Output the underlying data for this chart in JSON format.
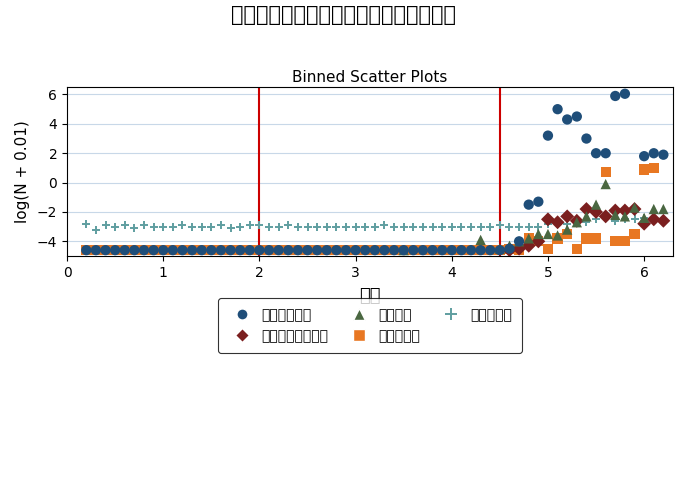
{
  "title": "東日本大震災：物理的被害と震度の関係",
  "subtitle": "Binned Scatter Plots",
  "xlabel": "震度",
  "ylabel": "log(N + 0.01)",
  "xlim": [
    0,
    6.3
  ],
  "ylim": [
    -5.0,
    6.5
  ],
  "vlines": [
    2.0,
    4.5
  ],
  "vline_color": "#cc0000",
  "background_color": "#ffffff",
  "grid_color": "#c8d8e8",
  "xticks": [
    0,
    1,
    2,
    3,
    4,
    5,
    6
  ],
  "yticks": [
    -4,
    -2,
    0,
    2,
    4,
    6
  ],
  "series": [
    {
      "name": "全半壊家屋数",
      "color": "#1f4e79",
      "marker": "o",
      "size": 55,
      "zorder": 5,
      "x": [
        0.2,
        0.3,
        0.4,
        0.5,
        0.6,
        0.7,
        0.8,
        0.9,
        1.0,
        1.1,
        1.2,
        1.3,
        1.4,
        1.5,
        1.6,
        1.7,
        1.8,
        1.9,
        2.0,
        2.1,
        2.2,
        2.3,
        2.4,
        2.5,
        2.6,
        2.7,
        2.8,
        2.9,
        3.0,
        3.1,
        3.2,
        3.3,
        3.4,
        3.5,
        3.6,
        3.7,
        3.8,
        3.9,
        4.0,
        4.1,
        4.2,
        4.3,
        4.4,
        4.5,
        4.6,
        4.7,
        4.8,
        4.9,
        5.0,
        5.1,
        5.2,
        5.3,
        5.4,
        5.5,
        5.6,
        5.7,
        5.8,
        6.0,
        6.1,
        6.2
      ],
      "y": [
        -4.6,
        -4.6,
        -4.6,
        -4.6,
        -4.6,
        -4.6,
        -4.6,
        -4.6,
        -4.6,
        -4.6,
        -4.6,
        -4.6,
        -4.6,
        -4.6,
        -4.6,
        -4.6,
        -4.6,
        -4.6,
        -4.6,
        -4.6,
        -4.6,
        -4.6,
        -4.6,
        -4.6,
        -4.6,
        -4.6,
        -4.6,
        -4.6,
        -4.6,
        -4.6,
        -4.6,
        -4.6,
        -4.6,
        -4.6,
        -4.6,
        -4.6,
        -4.6,
        -4.6,
        -4.6,
        -4.6,
        -4.6,
        -4.6,
        -4.6,
        -4.6,
        -4.5,
        -4.0,
        -1.5,
        -1.3,
        3.2,
        5.0,
        4.3,
        4.5,
        3.0,
        2.0,
        2.0,
        5.9,
        6.05,
        1.8,
        2.0,
        1.9
      ]
    },
    {
      "name": "浸水世帯数",
      "color": "#e87722",
      "marker": "s",
      "size": 55,
      "zorder": 4,
      "x": [
        0.2,
        0.3,
        0.4,
        0.5,
        0.6,
        0.7,
        0.8,
        0.9,
        1.0,
        1.1,
        1.2,
        1.3,
        1.4,
        1.5,
        1.6,
        1.7,
        1.8,
        1.9,
        2.0,
        2.1,
        2.2,
        2.3,
        2.4,
        2.5,
        2.6,
        2.7,
        2.8,
        2.9,
        3.0,
        3.1,
        3.2,
        3.3,
        3.4,
        3.5,
        3.6,
        3.7,
        3.8,
        3.9,
        4.0,
        4.1,
        4.2,
        4.3,
        4.4,
        4.5,
        4.6,
        4.7,
        4.8,
        4.9,
        5.0,
        5.1,
        5.2,
        5.3,
        5.4,
        5.5,
        5.6,
        5.7,
        5.8,
        5.9,
        6.0,
        6.1
      ],
      "y": [
        -4.6,
        -4.6,
        -4.6,
        -4.6,
        -4.6,
        -4.6,
        -4.6,
        -4.6,
        -4.6,
        -4.6,
        -4.6,
        -4.6,
        -4.6,
        -4.6,
        -4.6,
        -4.6,
        -4.6,
        -4.6,
        -4.6,
        -4.6,
        -4.6,
        -4.6,
        -4.6,
        -4.6,
        -4.6,
        -4.6,
        -4.6,
        -4.6,
        -4.6,
        -4.6,
        -4.6,
        -4.6,
        -4.6,
        -4.6,
        -4.6,
        -4.6,
        -4.6,
        -4.6,
        -4.6,
        -4.6,
        -4.6,
        -4.6,
        -4.6,
        -4.6,
        -4.5,
        -4.6,
        -3.8,
        -4.0,
        -4.5,
        -3.8,
        -3.5,
        -4.5,
        -3.8,
        -3.8,
        0.7,
        -4.0,
        -4.0,
        -3.5,
        0.9,
        1.0
      ]
    },
    {
      "name": "死者行方不明者数",
      "color": "#7b1f1f",
      "marker": "D",
      "size": 50,
      "zorder": 4,
      "x": [
        4.6,
        4.7,
        4.8,
        4.9,
        5.0,
        5.1,
        5.2,
        5.3,
        5.4,
        5.5,
        5.6,
        5.7,
        5.8,
        5.9,
        6.0,
        6.1,
        6.2
      ],
      "y": [
        -4.6,
        -4.5,
        -4.3,
        -4.0,
        -2.5,
        -2.7,
        -2.3,
        -2.6,
        -1.8,
        -2.0,
        -2.3,
        -1.9,
        -1.9,
        -1.8,
        -2.8,
        -2.5,
        -2.6
      ]
    },
    {
      "name": "負傷者数",
      "color": "#4a6741",
      "marker": "^",
      "size": 55,
      "zorder": 4,
      "x": [
        3.5,
        4.3,
        4.5,
        4.6,
        4.7,
        4.8,
        4.9,
        5.0,
        5.1,
        5.2,
        5.3,
        5.4,
        5.5,
        5.6,
        5.7,
        5.8,
        5.9,
        6.0,
        6.1,
        6.2
      ],
      "y": [
        -4.6,
        -3.9,
        -4.5,
        -4.3,
        -4.0,
        -3.8,
        -3.5,
        -3.5,
        -3.6,
        -3.2,
        -2.7,
        -2.3,
        -1.5,
        -0.1,
        -2.2,
        -2.3,
        -1.7,
        -2.4,
        -1.8,
        -1.8
      ]
    },
    {
      "name": "放射線濃度",
      "color": "#5f9ea0",
      "marker": "+",
      "size": 35,
      "zorder": 3,
      "x": [
        0.2,
        0.3,
        0.4,
        0.5,
        0.6,
        0.7,
        0.8,
        0.9,
        1.0,
        1.1,
        1.2,
        1.3,
        1.4,
        1.5,
        1.6,
        1.7,
        1.8,
        1.9,
        2.0,
        2.1,
        2.2,
        2.3,
        2.4,
        2.5,
        2.6,
        2.7,
        2.8,
        2.9,
        3.0,
        3.1,
        3.2,
        3.3,
        3.4,
        3.5,
        3.6,
        3.7,
        3.8,
        3.9,
        4.0,
        4.1,
        4.2,
        4.3,
        4.4,
        4.5,
        4.6,
        4.7,
        4.8,
        4.9,
        5.0,
        5.1,
        5.2,
        5.3,
        5.4,
        5.5,
        5.6,
        5.7,
        5.8,
        5.9,
        6.0,
        6.1
      ],
      "y": [
        -2.8,
        -3.2,
        -2.9,
        -3.0,
        -2.9,
        -3.1,
        -2.9,
        -3.0,
        -3.0,
        -3.0,
        -2.9,
        -3.0,
        -3.0,
        -3.0,
        -2.9,
        -3.1,
        -3.0,
        -2.9,
        -2.9,
        -3.0,
        -3.0,
        -2.9,
        -3.0,
        -3.0,
        -3.0,
        -3.0,
        -3.0,
        -3.0,
        -3.0,
        -3.0,
        -3.0,
        -2.9,
        -3.0,
        -3.0,
        -3.0,
        -3.0,
        -3.0,
        -3.0,
        -3.0,
        -3.0,
        -3.0,
        -3.0,
        -3.0,
        -2.9,
        -3.0,
        -3.0,
        -3.0,
        -3.0,
        -2.8,
        -2.8,
        -2.8,
        -2.7,
        -2.7,
        -2.5,
        -2.3,
        -2.6,
        -2.5,
        -2.5,
        -2.4,
        -2.6
      ]
    }
  ],
  "legend": [
    {
      "label": "全半壊家屋数",
      "color": "#1f4e79",
      "marker": "o"
    },
    {
      "label": "死者行方不明者数",
      "color": "#7b1f1f",
      "marker": "D"
    },
    {
      "label": "負傷者数",
      "color": "#4a6741",
      "marker": "^"
    },
    {
      "label": "浸水世帯数",
      "color": "#e87722",
      "marker": "s"
    },
    {
      "label": "放射線濃度",
      "color": "#5f9ea0",
      "marker": "+"
    }
  ]
}
